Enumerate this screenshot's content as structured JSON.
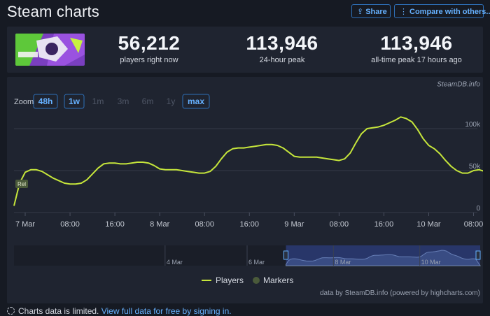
{
  "header": {
    "title": "Steam charts",
    "share_label": "Share",
    "compare_label": "Compare with others..."
  },
  "stats": {
    "current": {
      "value": "56,212",
      "label": "players right now"
    },
    "peak24": {
      "value": "113,946",
      "label": "24-hour peak"
    },
    "alltime": {
      "value": "113,946",
      "label": "all-time peak 17 hours ago"
    }
  },
  "chart": {
    "credit_top": "SteamDB.info",
    "zoom_label": "Zoom",
    "zoom_buttons": [
      {
        "label": "48h",
        "enabled": true
      },
      {
        "label": "1w",
        "enabled": true
      },
      {
        "label": "1m",
        "enabled": false
      },
      {
        "label": "3m",
        "enabled": false
      },
      {
        "label": "6m",
        "enabled": false
      },
      {
        "label": "1y",
        "enabled": false
      },
      {
        "label": "max",
        "enabled": true
      }
    ],
    "release_marker": "Rel",
    "credit_bottom": "data by SteamDB.info (powered by highcharts.com)"
  },
  "chart_data": {
    "type": "line",
    "xlabel": "",
    "ylabel": "",
    "y_ticks": [
      "0",
      "50k",
      "100k"
    ],
    "ylim": [
      0,
      120000
    ],
    "x_range_hours": [
      -2,
      72
    ],
    "x_ticks": [
      {
        "label": "7 Mar",
        "hour": 0
      },
      {
        "label": "08:00",
        "hour": 8
      },
      {
        "label": "16:00",
        "hour": 16
      },
      {
        "label": "8 Mar",
        "hour": 24
      },
      {
        "label": "08:00",
        "hour": 32
      },
      {
        "label": "16:00",
        "hour": 40
      },
      {
        "label": "9 Mar",
        "hour": 48
      },
      {
        "label": "08:00",
        "hour": 56
      },
      {
        "label": "16:00",
        "hour": 64
      },
      {
        "label": "10 Mar",
        "hour": 72
      },
      {
        "label": "08:00",
        "hour": 80
      }
    ],
    "grid": true,
    "legend": {
      "position": "bottom",
      "entries": [
        "Players",
        "Markers"
      ]
    },
    "colors": {
      "players": "#c6e63b",
      "markers": "#4a5a3a",
      "grid": "#343a48"
    },
    "series": [
      {
        "name": "Players",
        "points": [
          [
            -2,
            8000
          ],
          [
            -1,
            35000
          ],
          [
            0,
            48000
          ],
          [
            1,
            51000
          ],
          [
            2,
            51000
          ],
          [
            3,
            49000
          ],
          [
            4,
            45000
          ],
          [
            5,
            41000
          ],
          [
            6,
            38000
          ],
          [
            7,
            35000
          ],
          [
            8,
            34000
          ],
          [
            9,
            34000
          ],
          [
            10,
            35000
          ],
          [
            11,
            39000
          ],
          [
            12,
            46000
          ],
          [
            13,
            53000
          ],
          [
            14,
            58000
          ],
          [
            15,
            59000
          ],
          [
            16,
            59000
          ],
          [
            17,
            58000
          ],
          [
            18,
            58000
          ],
          [
            19,
            59000
          ],
          [
            20,
            60000
          ],
          [
            21,
            60000
          ],
          [
            22,
            59000
          ],
          [
            23,
            56000
          ],
          [
            24,
            52000
          ],
          [
            25,
            51000
          ],
          [
            26,
            51000
          ],
          [
            27,
            51000
          ],
          [
            28,
            50000
          ],
          [
            29,
            49000
          ],
          [
            30,
            48000
          ],
          [
            31,
            47000
          ],
          [
            32,
            47000
          ],
          [
            33,
            49000
          ],
          [
            34,
            55000
          ],
          [
            35,
            64000
          ],
          [
            36,
            72000
          ],
          [
            37,
            76000
          ],
          [
            38,
            77000
          ],
          [
            39,
            77000
          ],
          [
            40,
            78000
          ],
          [
            41,
            79000
          ],
          [
            42,
            80000
          ],
          [
            43,
            81000
          ],
          [
            44,
            81000
          ],
          [
            45,
            80000
          ],
          [
            46,
            77000
          ],
          [
            47,
            72000
          ],
          [
            48,
            67000
          ],
          [
            49,
            66000
          ],
          [
            50,
            66000
          ],
          [
            51,
            66000
          ],
          [
            52,
            66000
          ],
          [
            53,
            65000
          ],
          [
            54,
            64000
          ],
          [
            55,
            63000
          ],
          [
            56,
            62000
          ],
          [
            57,
            64000
          ],
          [
            58,
            71000
          ],
          [
            59,
            83000
          ],
          [
            60,
            94000
          ],
          [
            61,
            100000
          ],
          [
            62,
            101000
          ],
          [
            63,
            102000
          ],
          [
            64,
            104000
          ],
          [
            65,
            107000
          ],
          [
            66,
            110000
          ],
          [
            67,
            113946
          ],
          [
            68,
            112000
          ],
          [
            69,
            108000
          ],
          [
            70,
            99000
          ],
          [
            71,
            88000
          ],
          [
            72,
            80000
          ],
          [
            73,
            76000
          ],
          [
            74,
            70000
          ],
          [
            75,
            62000
          ],
          [
            76,
            55000
          ],
          [
            77,
            50000
          ],
          [
            78,
            47000
          ],
          [
            79,
            47000
          ],
          [
            80,
            50000
          ],
          [
            81,
            51000
          ],
          [
            82,
            49000
          ]
        ]
      }
    ],
    "navigator": {
      "x_ticks": [
        "4 Mar",
        "6 Mar",
        "8 Mar",
        "10 Mar"
      ],
      "x_range_days": [
        0,
        10.8
      ],
      "tick_days": [
        3.5,
        5.4,
        7.4,
        9.4
      ],
      "selected_range_days": [
        6.3,
        10.8
      ]
    }
  }
}
